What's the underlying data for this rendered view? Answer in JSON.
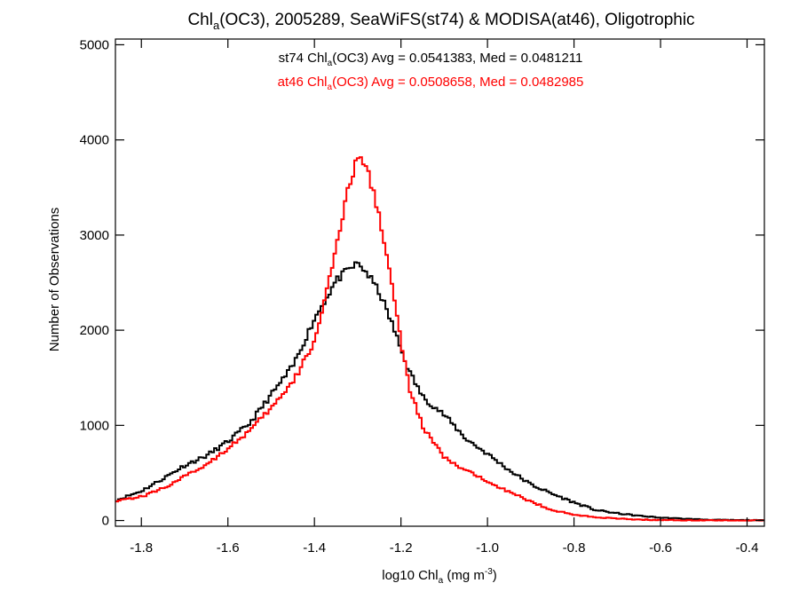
{
  "chart_data": {
    "type": "line",
    "title_parts": [
      "Chl",
      "a",
      "(OC3), 2005289, SeaWiFS(st74) & MODISA(at46), Oligotrophic"
    ],
    "xlabel_parts": [
      "log10 Chl",
      "a",
      " (mg m",
      "-3",
      ")"
    ],
    "ylabel": "Number of Observations",
    "xlim": [
      -1.86,
      -0.36
    ],
    "ylim": [
      -60,
      5060
    ],
    "x_ticks": [
      -1.8,
      -1.6,
      -1.4,
      -1.2,
      -1.0,
      -0.8,
      -0.6,
      -0.4
    ],
    "x_tick_labels": [
      "-1.8",
      "-1.6",
      "-1.4",
      "-1.2",
      "-1.0",
      "-0.8",
      "-0.6",
      "-0.4"
    ],
    "y_ticks": [
      0,
      1000,
      2000,
      3000,
      4000,
      5000
    ],
    "y_tick_labels": [
      "0",
      "1000",
      "2000",
      "3000",
      "4000",
      "5000"
    ],
    "grid": false,
    "annotations": [
      {
        "parts": [
          "st74 Chl",
          "a",
          "(OC3) Avg = 0.0541383, Med = 0.0481211"
        ],
        "color": "#000000"
      },
      {
        "parts": [
          "at46 Chl",
          "a",
          "(OC3) Avg = 0.0508658, Med = 0.0482985"
        ],
        "color": "#ff0000"
      }
    ],
    "series": [
      {
        "name": "st74",
        "color": "#000000",
        "style": "step",
        "x": [
          -1.86,
          -1.8,
          -1.75,
          -1.7,
          -1.65,
          -1.6,
          -1.55,
          -1.5,
          -1.45,
          -1.4,
          -1.35,
          -1.32,
          -1.3,
          -1.28,
          -1.25,
          -1.22,
          -1.2,
          -1.18,
          -1.15,
          -1.1,
          -1.05,
          -1.0,
          -0.95,
          -0.9,
          -0.85,
          -0.8,
          -0.75,
          -0.7,
          -0.65,
          -0.6,
          -0.55,
          -0.5,
          -0.45,
          -0.4,
          -0.36
        ],
        "y": [
          210,
          310,
          440,
          580,
          680,
          830,
          1020,
          1320,
          1620,
          2120,
          2520,
          2640,
          2700,
          2610,
          2400,
          2060,
          1800,
          1560,
          1300,
          1110,
          860,
          700,
          530,
          380,
          280,
          190,
          110,
          75,
          50,
          30,
          20,
          10,
          5,
          3,
          2
        ]
      },
      {
        "name": "at46",
        "color": "#ff0000",
        "style": "step",
        "x": [
          -1.86,
          -1.8,
          -1.75,
          -1.7,
          -1.65,
          -1.6,
          -1.55,
          -1.5,
          -1.45,
          -1.4,
          -1.35,
          -1.32,
          -1.3,
          -1.28,
          -1.25,
          -1.22,
          -1.2,
          -1.18,
          -1.15,
          -1.1,
          -1.05,
          -1.0,
          -0.95,
          -0.9,
          -0.85,
          -0.8,
          -0.75,
          -0.7,
          -0.65,
          -0.6,
          -0.55,
          -0.5,
          -0.45,
          -0.4,
          -0.36
        ],
        "y": [
          210,
          250,
          340,
          460,
          590,
          760,
          940,
          1180,
          1450,
          1880,
          2840,
          3520,
          3820,
          3720,
          3220,
          2450,
          1880,
          1380,
          990,
          660,
          520,
          420,
          300,
          200,
          110,
          60,
          35,
          20,
          10,
          5,
          3,
          2,
          1,
          0,
          0
        ]
      }
    ]
  }
}
